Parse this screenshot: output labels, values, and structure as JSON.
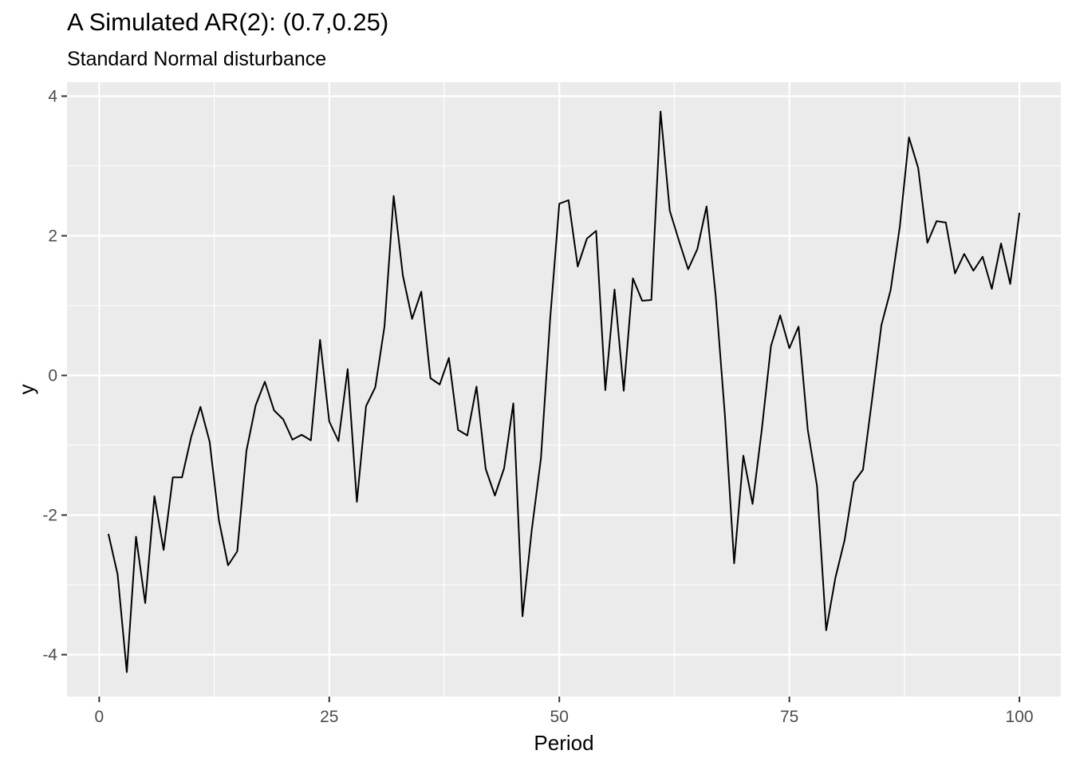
{
  "chart_data": {
    "type": "line",
    "title": "A Simulated AR(2): (0.7,0.25)",
    "subtitle": "Standard Normal disturbance",
    "xlabel": "Period",
    "ylabel": "y",
    "xlim": [
      -3.5,
      104.5
    ],
    "ylim": [
      -4.6,
      4.2
    ],
    "x_ticks": [
      0,
      25,
      50,
      75,
      100
    ],
    "x_tick_labels": [
      "0",
      "25",
      "50",
      "75",
      "100"
    ],
    "y_ticks": [
      -4,
      -2,
      0,
      2,
      4
    ],
    "y_tick_labels": [
      "-4",
      "-2",
      "0",
      "2",
      "4"
    ],
    "grid": true,
    "colors": {
      "panel": "#ebebeb",
      "grid": "#ffffff",
      "line": "#000000",
      "tick": "#4d4d4d"
    },
    "series": [
      {
        "x": [
          1,
          2,
          3,
          4,
          5,
          6,
          7,
          8,
          9,
          10,
          11,
          12,
          13,
          14,
          15,
          16,
          17,
          18,
          19,
          20,
          21,
          22,
          23,
          24,
          25,
          26,
          27,
          28,
          29,
          30,
          31,
          32,
          33,
          34,
          35,
          36,
          37,
          38,
          39,
          40,
          41,
          42,
          43,
          44,
          45,
          46,
          47,
          48,
          49,
          50,
          51,
          52,
          53,
          54,
          55,
          56,
          57,
          58,
          59,
          60,
          61,
          62,
          63,
          64,
          65,
          66,
          67,
          68,
          69,
          70,
          71,
          72,
          73,
          74,
          75,
          76,
          77,
          78,
          79,
          80,
          81,
          82,
          83,
          84,
          85,
          86,
          87,
          88,
          89,
          90,
          91,
          92,
          93,
          94,
          95,
          96,
          97,
          98,
          99,
          100
        ],
        "values": [
          -2.27,
          -2.85,
          -4.25,
          -2.31,
          -3.26,
          -1.73,
          -2.5,
          -1.46,
          -1.46,
          -0.88,
          -0.45,
          -0.95,
          -2.07,
          -2.72,
          -2.52,
          -1.08,
          -0.43,
          -0.09,
          -0.5,
          -0.63,
          -0.92,
          -0.85,
          -0.93,
          0.51,
          -0.66,
          -0.94,
          0.09,
          -1.81,
          -0.44,
          -0.17,
          0.7,
          2.57,
          1.43,
          0.81,
          1.2,
          -0.04,
          -0.13,
          0.25,
          -0.78,
          -0.86,
          -0.16,
          -1.34,
          -1.72,
          -1.33,
          -0.4,
          -3.45,
          -2.22,
          -1.19,
          0.8,
          2.46,
          2.51,
          1.56,
          1.96,
          2.07,
          -0.21,
          1.23,
          -0.22,
          1.39,
          1.07,
          1.08,
          3.78,
          2.36,
          1.93,
          1.52,
          1.81,
          2.42,
          1.13,
          -0.58,
          -2.69,
          -1.15,
          -1.84,
          -0.78,
          0.42,
          0.86,
          0.39,
          0.7,
          -0.78,
          -1.58,
          -3.65,
          -2.9,
          -2.36,
          -1.53,
          -1.35,
          -0.33,
          0.72,
          1.22,
          2.13,
          3.41,
          2.97,
          1.9,
          2.21,
          2.19,
          1.46,
          1.74,
          1.5,
          1.7,
          1.24,
          1.89,
          1.31,
          2.33
        ]
      }
    ]
  }
}
